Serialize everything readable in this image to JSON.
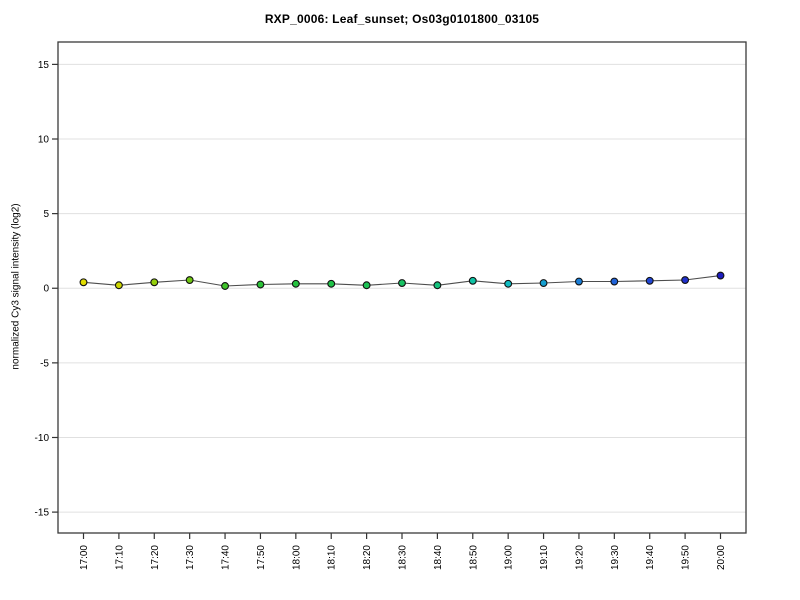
{
  "page": {
    "background": "#ffffff"
  },
  "chart_data": {
    "type": "line",
    "title": "RXP_0006: Leaf_sunset; Os03g0101800_03105",
    "xlabel": "",
    "ylabel": "normalized Cy3 signal intensity (log2)",
    "ylim": [
      -16.4,
      16.5
    ],
    "yticks": [
      -15,
      -10,
      -5,
      0,
      5,
      10,
      15
    ],
    "grid": "horizontal",
    "legend": "none",
    "categories": [
      "17:00",
      "17:10",
      "17:20",
      "17:30",
      "17:40",
      "17:50",
      "18:00",
      "18:10",
      "18:20",
      "18:30",
      "18:40",
      "18:50",
      "19:00",
      "19:10",
      "19:20",
      "19:30",
      "19:40",
      "19:50",
      "20:00"
    ],
    "values": [
      0.4,
      0.2,
      0.4,
      0.55,
      0.15,
      0.25,
      0.3,
      0.3,
      0.2,
      0.35,
      0.2,
      0.5,
      0.3,
      0.35,
      0.45,
      0.45,
      0.5,
      0.55,
      0.85
    ],
    "point_colors": [
      "#e0dc00",
      "#ccd600",
      "#94cf0b",
      "#70c713",
      "#3fc32a",
      "#2cc238",
      "#24c23e",
      "#1fc247",
      "#1cc254",
      "#18c263",
      "#14c27d",
      "#0fc2a4",
      "#10bcc2",
      "#149fd0",
      "#1a7ed8",
      "#1f62d8",
      "#2146d4",
      "#2030cc",
      "#1d1dbe"
    ],
    "colors": {
      "line": "#4d4d4d",
      "marker_stroke": "#111111",
      "grid": "#e0e0e0",
      "frame": "#3a3a3a",
      "tick": "#333333"
    }
  }
}
